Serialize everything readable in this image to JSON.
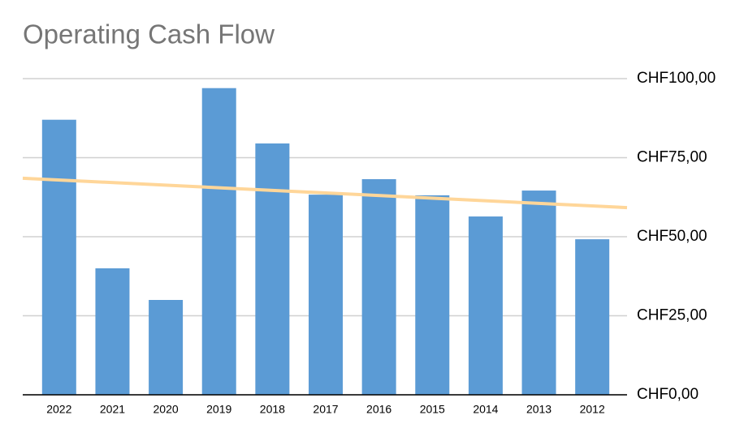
{
  "chart_data": {
    "type": "bar",
    "title": "Operating Cash Flow",
    "categories": [
      "2022",
      "2021",
      "2020",
      "2019",
      "2018",
      "2017",
      "2016",
      "2015",
      "2014",
      "2013",
      "2012"
    ],
    "values": [
      87,
      40,
      30,
      97,
      79.5,
      63.3,
      68.2,
      63.1,
      56.4,
      64.6,
      49.2
    ],
    "color": "#5b9bd5",
    "trendline": {
      "color": "#ffd699",
      "values": [
        68.5,
        59.2
      ]
    },
    "ylim": [
      0,
      100
    ],
    "yticks": [
      {
        "value": 0,
        "label": "CHF0,00"
      },
      {
        "value": 25,
        "label": "CHF25,00"
      },
      {
        "value": 50,
        "label": "CHF50,00"
      },
      {
        "value": 75,
        "label": "CHF75,00"
      },
      {
        "value": 100,
        "label": "CHF100,00"
      }
    ],
    "grid": true,
    "y_axis_side": "right"
  }
}
